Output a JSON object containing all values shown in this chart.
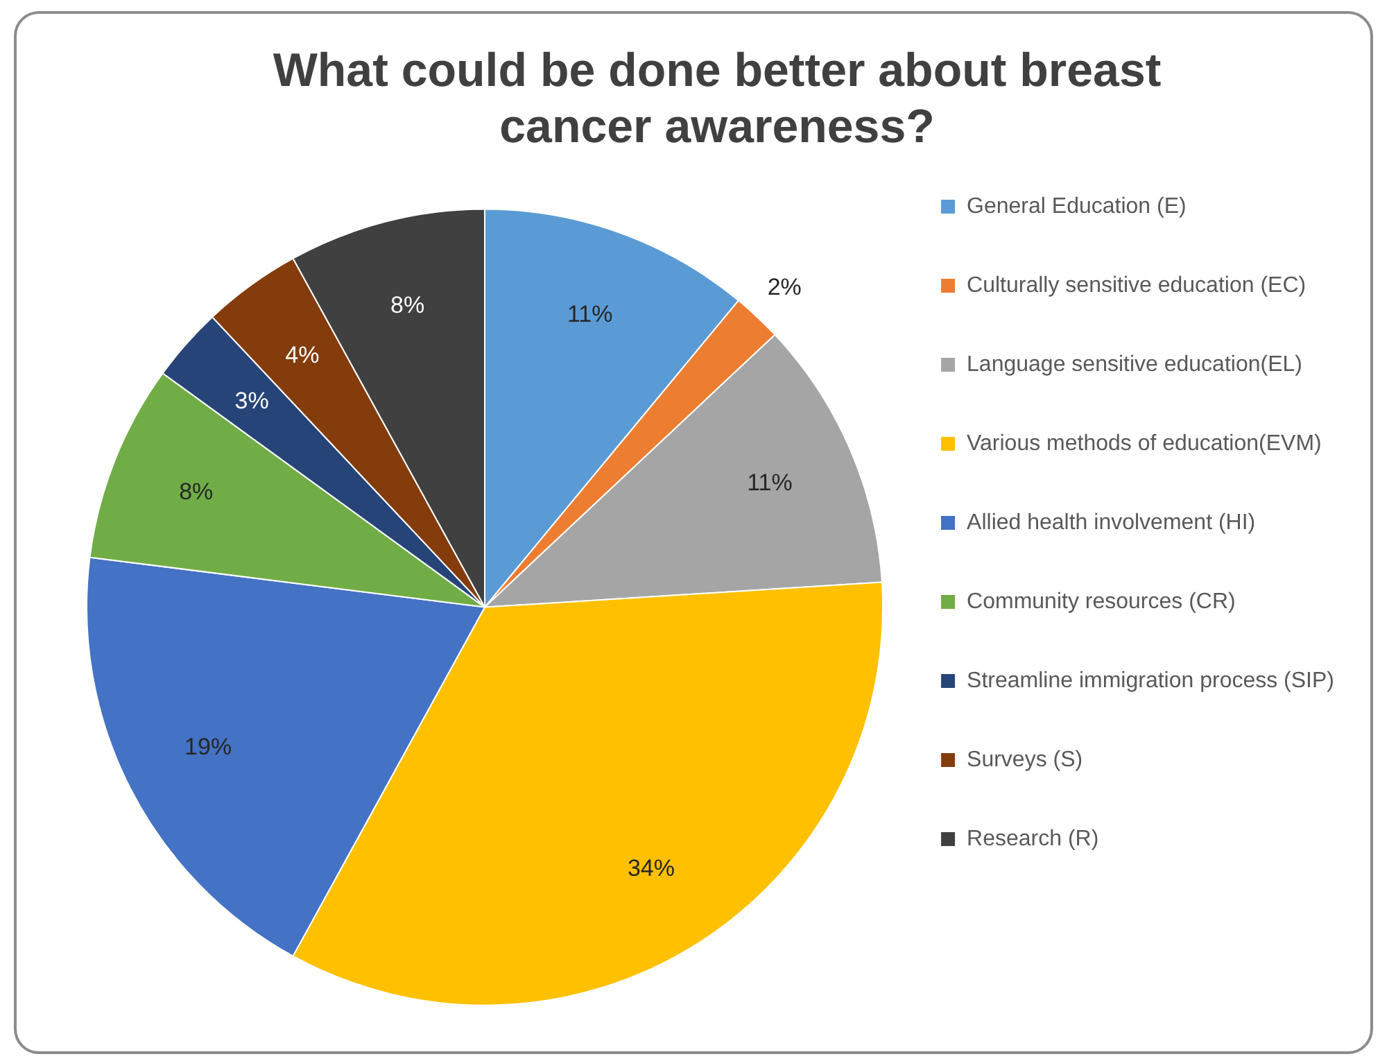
{
  "chart_data": {
    "type": "pie",
    "title": "What could be done better about breast cancer awareness?",
    "categories": [
      "General Education (E)",
      "Culturally sensitive education (EC)",
      "Language sensitive education(EL)",
      "Various methods of education(EVM)",
      "Allied health involvement (HI)",
      "Community resources (CR)",
      "Streamline immigration process (SIP)",
      "Surveys (S)",
      "Research (R)"
    ],
    "values": [
      11,
      2,
      11,
      34,
      19,
      8,
      3,
      4,
      8
    ],
    "value_labels": [
      "11%",
      "2%",
      "11%",
      "34%",
      "19%",
      "8%",
      "3%",
      "4%",
      "8%"
    ],
    "colors": [
      "#5b9bd5",
      "#ed7d31",
      "#a5a5a5",
      "#ffc000",
      "#4472c4",
      "#70ad47",
      "#264478",
      "#843c0c",
      "#404040"
    ],
    "legend": "right"
  }
}
